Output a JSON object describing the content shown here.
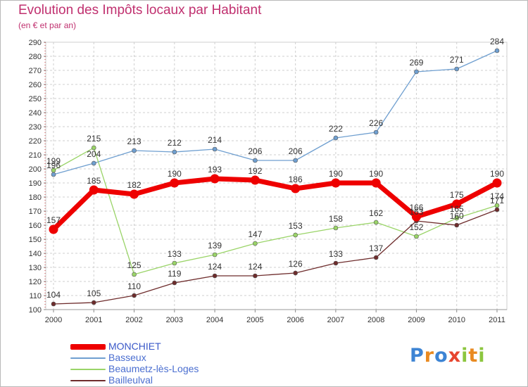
{
  "title": "Evolution des Impôts locaux par Habitant",
  "subtitle": "(en € et par an)",
  "logo": {
    "text": "Proxiti",
    "letters": [
      "P",
      "r",
      "o",
      "x",
      "i",
      "t",
      "i"
    ],
    "colors": [
      "#3d84d4",
      "#e98a21",
      "#3d84d4",
      "#e7452e",
      "#8cc63f",
      "#e98a21",
      "#8cc63f"
    ]
  },
  "chart_data": {
    "type": "line",
    "title": "Evolution des Impôts locaux par Habitant",
    "xlabel": "",
    "ylabel": "",
    "ylim": [
      100,
      290
    ],
    "ytick_step": 10,
    "grid": true,
    "legend_position": "bottom-left",
    "x": [
      "2000",
      "2001",
      "2002",
      "2003",
      "2004",
      "2005",
      "2006",
      "2007",
      "2008",
      "2009",
      "2010",
      "2011"
    ],
    "series": [
      {
        "name": "MONCHIET",
        "color": "#ee0000",
        "label_color": "#333333",
        "emphasis": true,
        "values": [
          157,
          185,
          182,
          190,
          193,
          192,
          186,
          190,
          190,
          166,
          175,
          190
        ]
      },
      {
        "name": "Basseux",
        "color": "#6f9fd0",
        "label_color": "#333333",
        "emphasis": false,
        "values": [
          196,
          204,
          213,
          212,
          214,
          206,
          206,
          222,
          226,
          269,
          271,
          284
        ]
      },
      {
        "name": "Beaumetz-lès-Loges",
        "color": "#9ad468",
        "label_color": "#333333",
        "emphasis": false,
        "values": [
          199,
          215,
          125,
          133,
          139,
          147,
          153,
          158,
          162,
          152,
          165,
          174
        ]
      },
      {
        "name": "Bailleulval",
        "color": "#6e2c2c",
        "label_color": "#333333",
        "emphasis": false,
        "values": [
          104,
          105,
          110,
          119,
          124,
          124,
          126,
          133,
          137,
          163,
          160,
          171
        ]
      }
    ]
  }
}
